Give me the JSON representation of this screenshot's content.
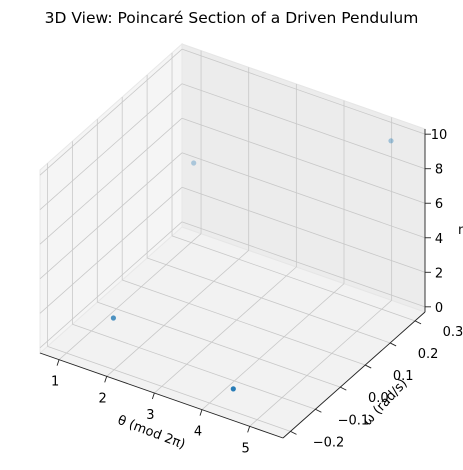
{
  "chart_data": {
    "type": "scatter",
    "title": "3D View: Poincaré Section of a Driven Pendulum",
    "xlabel": "θ (mod 2π)",
    "ylabel": "ω (rad/s)",
    "zlabel": "n",
    "xticks": [
      "1",
      "2",
      "3",
      "4",
      "5"
    ],
    "yticks": [
      "−0.2",
      "−0.1",
      "0.0",
      "0.1",
      "0.2",
      "0.3"
    ],
    "zticks": [
      "0",
      "2",
      "4",
      "6",
      "8",
      "10"
    ],
    "xlim": [
      0.6,
      5.7
    ],
    "ylim": [
      -0.23,
      0.34
    ],
    "zlim": [
      -0.3,
      10.3
    ],
    "grid": true,
    "point_color": "#1f77b4",
    "points": [
      {
        "x": 0.95,
        "y": 0.32,
        "z": 4
      },
      {
        "x": 1.2,
        "y": -0.05,
        "z": 0
      },
      {
        "x": 4.5,
        "y": -0.2,
        "z": 1
      },
      {
        "x": 5.3,
        "y": 0.28,
        "z": 10
      }
    ]
  }
}
